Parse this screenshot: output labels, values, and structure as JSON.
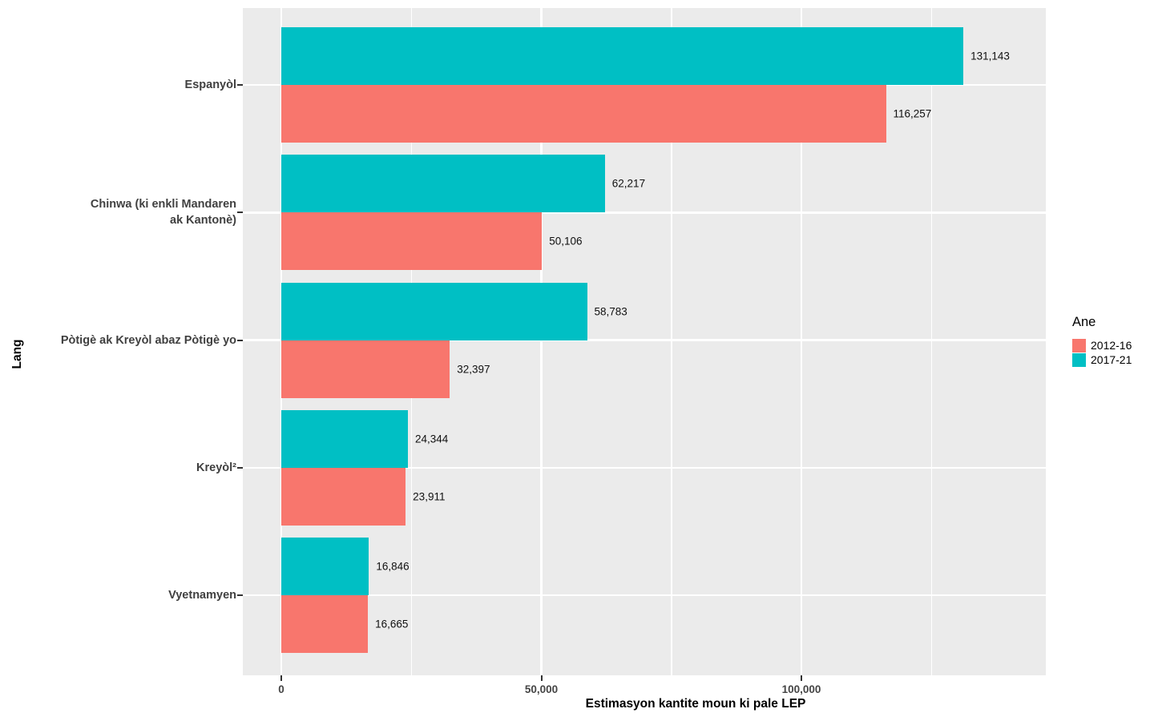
{
  "chart_data": {
    "type": "bar",
    "orientation": "horizontal",
    "xlabel": "Estimasyon kantite moun ki pale LEP",
    "ylabel": "Lang",
    "categories": [
      "Espanyòl",
      "Chinwa (ki enkli Mandaren\nak Kantonè)",
      "Pòtigè ak Kreyòl abaz Pòtigè yo",
      "Kreyòl²",
      "Vyetnamyen"
    ],
    "series": [
      {
        "name": "2017-21",
        "color": "#00BFC4",
        "values": [
          131143,
          62217,
          58783,
          24344,
          16846
        ],
        "labels": [
          "131,143",
          "62,217",
          "58,783",
          "24,344",
          "16,846"
        ]
      },
      {
        "name": "2012-16",
        "color": "#F8766D",
        "values": [
          116257,
          50106,
          32397,
          23911,
          16665
        ],
        "labels": [
          "116,257",
          "50,106",
          "32,397",
          "23,911",
          "16,665"
        ]
      }
    ],
    "x_ticks": [
      {
        "value": 0,
        "label": "0"
      },
      {
        "value": 50000,
        "label": "50,000"
      },
      {
        "value": 100000,
        "label": "100,000"
      }
    ],
    "x_minor_ticks": [
      25000,
      75000,
      125000
    ],
    "xlim": [
      -7400,
      147000
    ],
    "grid": "on",
    "legend": {
      "title": "Ane",
      "position": "right",
      "items": [
        {
          "label": "2012-16",
          "color": "#F8766D"
        },
        {
          "label": "2017-21",
          "color": "#00BFC4"
        }
      ]
    },
    "colors": {
      "panel_bg": "#EBEBEB",
      "gridline": "#FFFFFF",
      "tick": "#333333",
      "axis_text": "#454545",
      "value_text": "#111111"
    }
  }
}
